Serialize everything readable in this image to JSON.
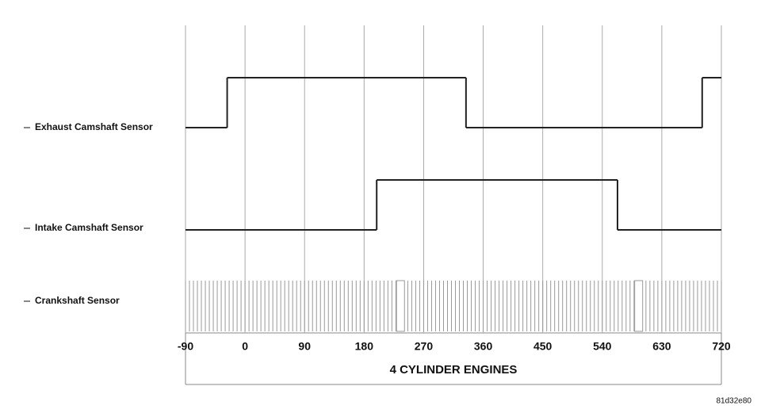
{
  "chart_data": {
    "type": "timing",
    "xlabel": "4 CYLINDER ENGINES",
    "xlim": [
      -90,
      720
    ],
    "xticks": [
      -90,
      0,
      90,
      180,
      270,
      360,
      450,
      540,
      630,
      720
    ],
    "grid": true,
    "series": [
      {
        "name": "Exhaust Camshaft Sensor",
        "color": "#222222",
        "x": [
          -90,
          -27,
          334,
          691
        ],
        "values": [
          0,
          1,
          0,
          1
        ]
      },
      {
        "name": "Intake Camshaft Sensor",
        "color": "#222222",
        "x": [
          -90,
          199,
          563
        ],
        "values": [
          0,
          1,
          0
        ]
      }
    ],
    "crank": {
      "name": "Crankshaft Sensor",
      "color": "#999999",
      "tooth_pitch": 6,
      "gaps": [
        [
          229,
          241
        ],
        [
          589,
          601
        ]
      ]
    },
    "footnote": "81d32e80"
  }
}
